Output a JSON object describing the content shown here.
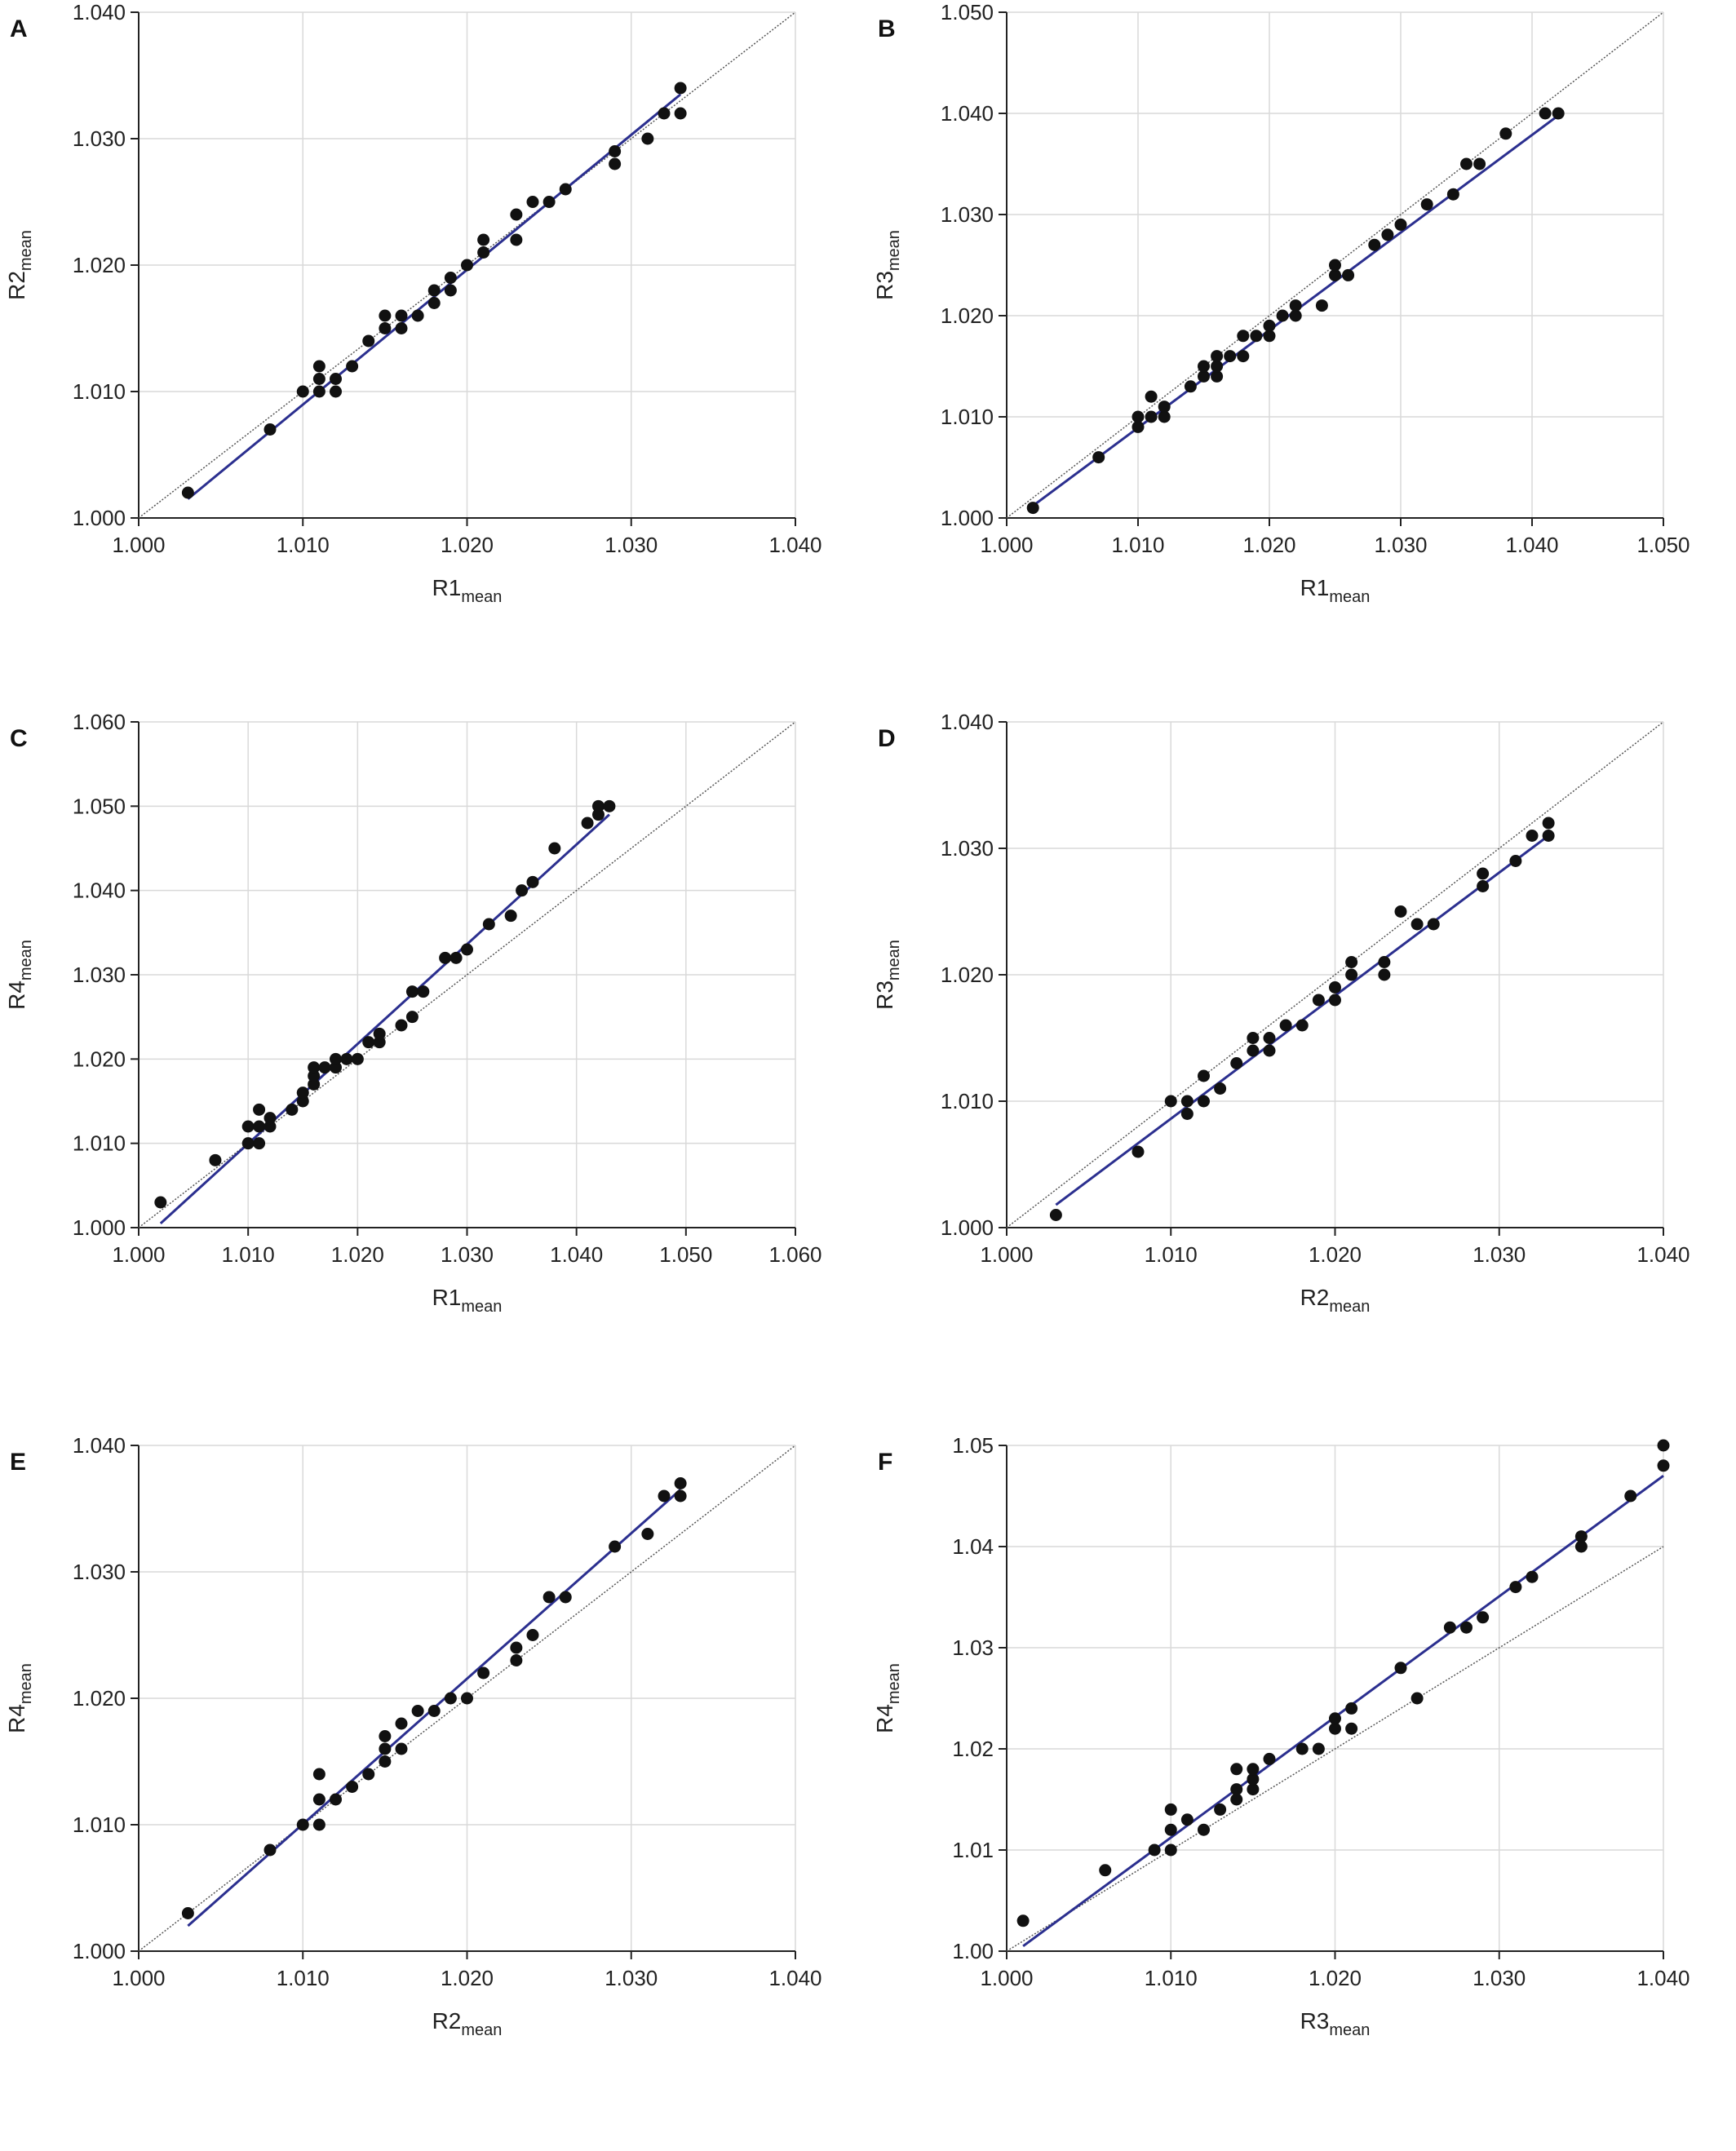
{
  "chart_data": [
    {
      "panel": "A",
      "type": "scatter",
      "xlabel_main": "R1",
      "xlabel_sub": "mean",
      "ylabel_main": "R2",
      "ylabel_sub": "mean",
      "xlim": [
        1.0,
        1.04
      ],
      "ylim": [
        1.0,
        1.04
      ],
      "xticks": [
        "1.000",
        "1.010",
        "1.020",
        "1.030",
        "1.040"
      ],
      "yticks": [
        "1.000",
        "1.010",
        "1.020",
        "1.030",
        "1.040"
      ],
      "grid": true,
      "identity_line": true,
      "fit_line": {
        "x": [
          1.003,
          1.033
        ],
        "y": [
          1.0015,
          1.0335
        ],
        "color": "#2b2f8f"
      },
      "points": [
        [
          1.003,
          1.002
        ],
        [
          1.008,
          1.007
        ],
        [
          1.01,
          1.01
        ],
        [
          1.011,
          1.01
        ],
        [
          1.011,
          1.011
        ],
        [
          1.011,
          1.012
        ],
        [
          1.012,
          1.01
        ],
        [
          1.012,
          1.011
        ],
        [
          1.013,
          1.012
        ],
        [
          1.014,
          1.014
        ],
        [
          1.015,
          1.015
        ],
        [
          1.015,
          1.016
        ],
        [
          1.016,
          1.015
        ],
        [
          1.016,
          1.016
        ],
        [
          1.017,
          1.016
        ],
        [
          1.018,
          1.017
        ],
        [
          1.018,
          1.018
        ],
        [
          1.019,
          1.018
        ],
        [
          1.019,
          1.019
        ],
        [
          1.02,
          1.02
        ],
        [
          1.021,
          1.021
        ],
        [
          1.021,
          1.022
        ],
        [
          1.023,
          1.022
        ],
        [
          1.023,
          1.024
        ],
        [
          1.024,
          1.025
        ],
        [
          1.025,
          1.025
        ],
        [
          1.026,
          1.026
        ],
        [
          1.029,
          1.028
        ],
        [
          1.029,
          1.029
        ],
        [
          1.031,
          1.03
        ],
        [
          1.032,
          1.032
        ],
        [
          1.033,
          1.032
        ],
        [
          1.033,
          1.034
        ]
      ]
    },
    {
      "panel": "B",
      "type": "scatter",
      "xlabel_main": "R1",
      "xlabel_sub": "mean",
      "ylabel_main": "R3",
      "ylabel_sub": "mean",
      "xlim": [
        1.0,
        1.05
      ],
      "ylim": [
        1.0,
        1.05
      ],
      "xticks": [
        "1.000",
        "1.010",
        "1.020",
        "1.030",
        "1.040",
        "1.050"
      ],
      "yticks": [
        "1.000",
        "1.010",
        "1.020",
        "1.030",
        "1.040",
        "1.050"
      ],
      "grid": true,
      "identity_line": true,
      "fit_line": {
        "x": [
          1.002,
          1.042
        ],
        "y": [
          1.0012,
          1.0398
        ],
        "color": "#2b2f8f"
      },
      "points": [
        [
          1.002,
          1.001
        ],
        [
          1.007,
          1.006
        ],
        [
          1.01,
          1.009
        ],
        [
          1.01,
          1.01
        ],
        [
          1.011,
          1.01
        ],
        [
          1.011,
          1.012
        ],
        [
          1.012,
          1.01
        ],
        [
          1.012,
          1.011
        ],
        [
          1.014,
          1.013
        ],
        [
          1.015,
          1.014
        ],
        [
          1.015,
          1.015
        ],
        [
          1.016,
          1.014
        ],
        [
          1.016,
          1.015
        ],
        [
          1.016,
          1.016
        ],
        [
          1.017,
          1.016
        ],
        [
          1.018,
          1.016
        ],
        [
          1.018,
          1.018
        ],
        [
          1.019,
          1.018
        ],
        [
          1.02,
          1.018
        ],
        [
          1.02,
          1.019
        ],
        [
          1.021,
          1.02
        ],
        [
          1.022,
          1.02
        ],
        [
          1.022,
          1.021
        ],
        [
          1.024,
          1.021
        ],
        [
          1.025,
          1.024
        ],
        [
          1.025,
          1.025
        ],
        [
          1.026,
          1.024
        ],
        [
          1.028,
          1.027
        ],
        [
          1.029,
          1.028
        ],
        [
          1.03,
          1.029
        ],
        [
          1.032,
          1.031
        ],
        [
          1.034,
          1.032
        ],
        [
          1.035,
          1.035
        ],
        [
          1.036,
          1.035
        ],
        [
          1.038,
          1.038
        ],
        [
          1.041,
          1.04
        ],
        [
          1.042,
          1.04
        ]
      ]
    },
    {
      "panel": "C",
      "type": "scatter",
      "xlabel_main": "R1",
      "xlabel_sub": "mean",
      "ylabel_main": "R4",
      "ylabel_sub": "mean",
      "xlim": [
        1.0,
        1.06
      ],
      "ylim": [
        1.0,
        1.06
      ],
      "xticks": [
        "1.000",
        "1.010",
        "1.020",
        "1.030",
        "1.040",
        "1.050",
        "1.060"
      ],
      "yticks": [
        "1.000",
        "1.010",
        "1.020",
        "1.030",
        "1.040",
        "1.050",
        "1.060"
      ],
      "grid": true,
      "identity_line": true,
      "fit_line": {
        "x": [
          1.002,
          1.043
        ],
        "y": [
          1.0005,
          1.049
        ],
        "color": "#2b2f8f"
      },
      "points": [
        [
          1.002,
          1.003
        ],
        [
          1.007,
          1.008
        ],
        [
          1.01,
          1.01
        ],
        [
          1.01,
          1.012
        ],
        [
          1.011,
          1.01
        ],
        [
          1.011,
          1.012
        ],
        [
          1.011,
          1.014
        ],
        [
          1.012,
          1.012
        ],
        [
          1.012,
          1.013
        ],
        [
          1.014,
          1.014
        ],
        [
          1.015,
          1.015
        ],
        [
          1.015,
          1.016
        ],
        [
          1.016,
          1.017
        ],
        [
          1.016,
          1.018
        ],
        [
          1.016,
          1.019
        ],
        [
          1.017,
          1.019
        ],
        [
          1.018,
          1.019
        ],
        [
          1.018,
          1.02
        ],
        [
          1.019,
          1.02
        ],
        [
          1.02,
          1.02
        ],
        [
          1.021,
          1.022
        ],
        [
          1.022,
          1.022
        ],
        [
          1.022,
          1.023
        ],
        [
          1.024,
          1.024
        ],
        [
          1.025,
          1.025
        ],
        [
          1.025,
          1.028
        ],
        [
          1.026,
          1.028
        ],
        [
          1.028,
          1.032
        ],
        [
          1.029,
          1.032
        ],
        [
          1.03,
          1.033
        ],
        [
          1.032,
          1.036
        ],
        [
          1.034,
          1.037
        ],
        [
          1.035,
          1.04
        ],
        [
          1.036,
          1.041
        ],
        [
          1.038,
          1.045
        ],
        [
          1.041,
          1.048
        ],
        [
          1.042,
          1.049
        ],
        [
          1.042,
          1.05
        ],
        [
          1.043,
          1.05
        ]
      ]
    },
    {
      "panel": "D",
      "type": "scatter",
      "xlabel_main": "R2",
      "xlabel_sub": "mean",
      "ylabel_main": "R3",
      "ylabel_sub": "mean",
      "xlim": [
        1.0,
        1.04
      ],
      "ylim": [
        1.0,
        1.04
      ],
      "xticks": [
        "1.000",
        "1.010",
        "1.020",
        "1.030",
        "1.040"
      ],
      "yticks": [
        "1.000",
        "1.010",
        "1.020",
        "1.030",
        "1.040"
      ],
      "grid": true,
      "identity_line": true,
      "fit_line": {
        "x": [
          1.003,
          1.033
        ],
        "y": [
          1.0018,
          1.031
        ],
        "color": "#2b2f8f"
      },
      "points": [
        [
          1.003,
          1.001
        ],
        [
          1.008,
          1.006
        ],
        [
          1.01,
          1.01
        ],
        [
          1.011,
          1.009
        ],
        [
          1.011,
          1.01
        ],
        [
          1.012,
          1.01
        ],
        [
          1.012,
          1.012
        ],
        [
          1.013,
          1.011
        ],
        [
          1.014,
          1.013
        ],
        [
          1.015,
          1.014
        ],
        [
          1.015,
          1.015
        ],
        [
          1.016,
          1.014
        ],
        [
          1.016,
          1.015
        ],
        [
          1.017,
          1.016
        ],
        [
          1.018,
          1.016
        ],
        [
          1.019,
          1.018
        ],
        [
          1.02,
          1.018
        ],
        [
          1.02,
          1.019
        ],
        [
          1.021,
          1.02
        ],
        [
          1.021,
          1.021
        ],
        [
          1.023,
          1.02
        ],
        [
          1.023,
          1.021
        ],
        [
          1.024,
          1.025
        ],
        [
          1.025,
          1.024
        ],
        [
          1.026,
          1.024
        ],
        [
          1.029,
          1.027
        ],
        [
          1.029,
          1.028
        ],
        [
          1.031,
          1.029
        ],
        [
          1.032,
          1.031
        ],
        [
          1.033,
          1.031
        ],
        [
          1.033,
          1.032
        ]
      ]
    },
    {
      "panel": "E",
      "type": "scatter",
      "xlabel_main": "R2",
      "xlabel_sub": "mean",
      "ylabel_main": "R4",
      "ylabel_sub": "mean",
      "xlim": [
        1.0,
        1.04
      ],
      "ylim": [
        1.0,
        1.04
      ],
      "xticks": [
        "1.000",
        "1.010",
        "1.020",
        "1.030",
        "1.040"
      ],
      "yticks": [
        "1.000",
        "1.010",
        "1.020",
        "1.030",
        "1.040"
      ],
      "grid": true,
      "identity_line": true,
      "fit_line": {
        "x": [
          1.003,
          1.033
        ],
        "y": [
          1.002,
          1.0365
        ],
        "color": "#2b2f8f"
      },
      "points": [
        [
          1.003,
          1.003
        ],
        [
          1.008,
          1.008
        ],
        [
          1.01,
          1.01
        ],
        [
          1.011,
          1.01
        ],
        [
          1.011,
          1.012
        ],
        [
          1.011,
          1.014
        ],
        [
          1.012,
          1.012
        ],
        [
          1.013,
          1.013
        ],
        [
          1.014,
          1.014
        ],
        [
          1.015,
          1.015
        ],
        [
          1.015,
          1.016
        ],
        [
          1.015,
          1.017
        ],
        [
          1.016,
          1.016
        ],
        [
          1.016,
          1.018
        ],
        [
          1.017,
          1.019
        ],
        [
          1.018,
          1.019
        ],
        [
          1.019,
          1.02
        ],
        [
          1.02,
          1.02
        ],
        [
          1.021,
          1.022
        ],
        [
          1.023,
          1.023
        ],
        [
          1.023,
          1.024
        ],
        [
          1.024,
          1.025
        ],
        [
          1.025,
          1.028
        ],
        [
          1.026,
          1.028
        ],
        [
          1.029,
          1.032
        ],
        [
          1.031,
          1.033
        ],
        [
          1.032,
          1.036
        ],
        [
          1.033,
          1.036
        ],
        [
          1.033,
          1.037
        ]
      ]
    },
    {
      "panel": "F",
      "type": "scatter",
      "xlabel_main": "R3",
      "xlabel_sub": "mean",
      "ylabel_main": "R4",
      "ylabel_sub": "mean",
      "xlim": [
        1.0,
        1.04
      ],
      "ylim": [
        1.0,
        1.05
      ],
      "xticks": [
        "1.000",
        "1.010",
        "1.020",
        "1.030",
        "1.040"
      ],
      "yticks": [
        "1.00",
        "1.01",
        "1.02",
        "1.03",
        "1.04",
        "1.05"
      ],
      "grid": true,
      "identity_line": true,
      "fit_line": {
        "x": [
          1.001,
          1.04
        ],
        "y": [
          1.0005,
          1.047
        ],
        "color": "#2b2f8f"
      },
      "points": [
        [
          1.001,
          1.003
        ],
        [
          1.006,
          1.008
        ],
        [
          1.009,
          1.01
        ],
        [
          1.01,
          1.01
        ],
        [
          1.01,
          1.012
        ],
        [
          1.01,
          1.014
        ],
        [
          1.011,
          1.013
        ],
        [
          1.012,
          1.012
        ],
        [
          1.013,
          1.014
        ],
        [
          1.014,
          1.015
        ],
        [
          1.014,
          1.016
        ],
        [
          1.014,
          1.018
        ],
        [
          1.015,
          1.016
        ],
        [
          1.015,
          1.017
        ],
        [
          1.015,
          1.018
        ],
        [
          1.016,
          1.019
        ],
        [
          1.018,
          1.02
        ],
        [
          1.019,
          1.02
        ],
        [
          1.02,
          1.022
        ],
        [
          1.02,
          1.023
        ],
        [
          1.021,
          1.022
        ],
        [
          1.021,
          1.024
        ],
        [
          1.024,
          1.028
        ],
        [
          1.025,
          1.025
        ],
        [
          1.027,
          1.032
        ],
        [
          1.028,
          1.032
        ],
        [
          1.029,
          1.033
        ],
        [
          1.031,
          1.036
        ],
        [
          1.032,
          1.037
        ],
        [
          1.035,
          1.04
        ],
        [
          1.035,
          1.041
        ],
        [
          1.038,
          1.045
        ],
        [
          1.04,
          1.048
        ],
        [
          1.04,
          1.05
        ]
      ]
    }
  ]
}
